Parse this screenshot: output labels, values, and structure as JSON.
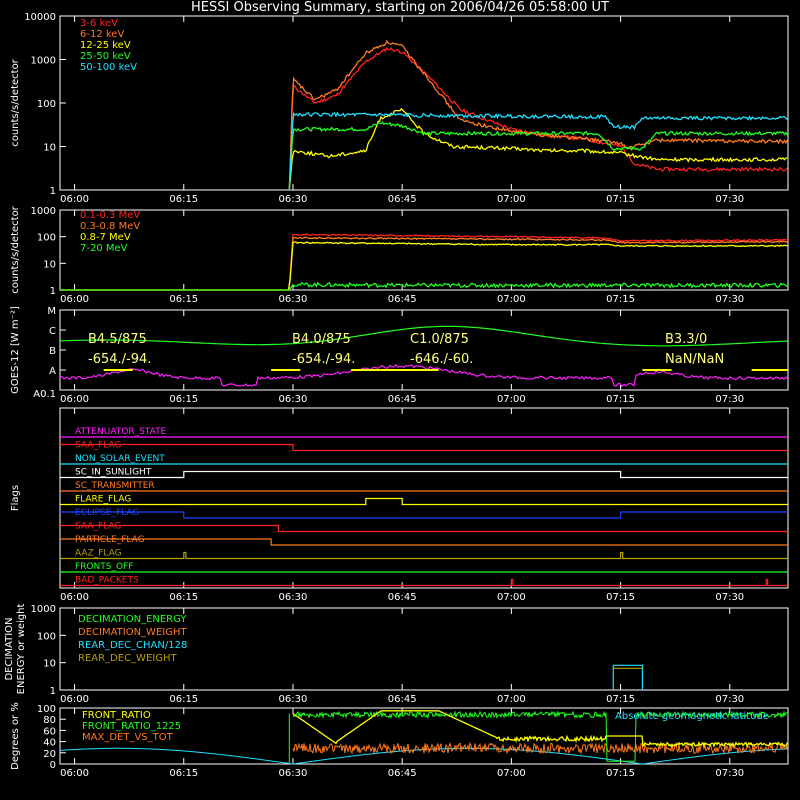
{
  "title": "HESSI Observing Summary, starting on 2006/04/26 05:58:00 UT",
  "time_ticks": [
    "06:00",
    "06:15",
    "06:30",
    "06:45",
    "07:00",
    "07:15",
    "07:30"
  ],
  "colors": {
    "background": "#000000",
    "axes": "#ffffff",
    "red": "#ff2020",
    "orange": "#ff7a20",
    "yellow": "#ffff00",
    "green": "#20ff20",
    "cyan": "#20e0ff",
    "magenta": "#ff20ff",
    "blue": "#2040ff",
    "olive": "#b8a000"
  },
  "chart_data": [
    {
      "type": "line",
      "ylabel": "counts/s/detector",
      "yscale": "log",
      "ylim": [
        1,
        10000
      ],
      "yticks": [
        "1",
        "10",
        "100",
        "1000",
        "10000"
      ],
      "xlim": [
        "05:58",
        "07:38"
      ],
      "series": [
        {
          "name": "3-6 keV",
          "color": "#ff2020",
          "points": [
            [
              "06:29.5",
              1
            ],
            [
              "06:30",
              250
            ],
            [
              "06:33",
              100
            ],
            [
              "06:36",
              150
            ],
            [
              "06:40",
              900
            ],
            [
              "06:43",
              1800
            ],
            [
              "06:45",
              1500
            ],
            [
              "06:49",
              350
            ],
            [
              "06:53",
              70
            ],
            [
              "07:00",
              25
            ],
            [
              "07:05",
              18
            ],
            [
              "07:10",
              15
            ],
            [
              "07:15",
              10
            ],
            [
              "07:17",
              4
            ],
            [
              "07:20",
              3
            ],
            [
              "07:38",
              3
            ]
          ]
        },
        {
          "name": "6-12 keV",
          "color": "#ff7a20",
          "points": [
            [
              "06:29.5",
              1
            ],
            [
              "06:30",
              350
            ],
            [
              "06:33",
              120
            ],
            [
              "06:36",
              200
            ],
            [
              "06:40",
              1400
            ],
            [
              "06:43",
              2500
            ],
            [
              "06:45",
              2000
            ],
            [
              "06:49",
              300
            ],
            [
              "06:53",
              40
            ],
            [
              "07:00",
              22
            ],
            [
              "07:05",
              18
            ],
            [
              "07:10",
              15
            ],
            [
              "07:15",
              12
            ],
            [
              "07:16",
              9
            ],
            [
              "07:20",
              14
            ],
            [
              "07:38",
              13
            ]
          ]
        },
        {
          "name": "12-25 keV",
          "color": "#ffff00",
          "points": [
            [
              "06:29.5",
              1
            ],
            [
              "06:30",
              8
            ],
            [
              "06:35",
              6
            ],
            [
              "06:40",
              8
            ],
            [
              "06:42",
              45
            ],
            [
              "06:45",
              70
            ],
            [
              "06:48",
              20
            ],
            [
              "06:52",
              10
            ],
            [
              "07:00",
              9
            ],
            [
              "07:05",
              8
            ],
            [
              "07:10",
              8
            ],
            [
              "07:15",
              7
            ],
            [
              "07:20",
              5
            ],
            [
              "07:38",
              5
            ]
          ]
        },
        {
          "name": "25-50 keV",
          "color": "#20ff20",
          "points": [
            [
              "06:29.5",
              1
            ],
            [
              "06:30",
              25
            ],
            [
              "06:40",
              25
            ],
            [
              "06:42",
              35
            ],
            [
              "06:45",
              30
            ],
            [
              "06:48",
              20
            ],
            [
              "07:00",
              20
            ],
            [
              "07:12",
              20
            ],
            [
              "07:14",
              9
            ],
            [
              "07:18",
              9
            ],
            [
              "07:20",
              20
            ],
            [
              "07:38",
              20
            ]
          ]
        },
        {
          "name": "50-100 keV",
          "color": "#20e0ff",
          "points": [
            [
              "06:29.5",
              1
            ],
            [
              "06:30",
              55
            ],
            [
              "07:13",
              48
            ],
            [
              "07:14",
              28
            ],
            [
              "07:17",
              28
            ],
            [
              "07:18",
              45
            ],
            [
              "07:38",
              45
            ]
          ]
        }
      ]
    },
    {
      "type": "line",
      "ylabel": "counts/s/detector",
      "yscale": "log",
      "ylim": [
        1,
        1000
      ],
      "yticks": [
        "1",
        "10",
        "100",
        "1000"
      ],
      "xlim": [
        "05:58",
        "07:38"
      ],
      "series": [
        {
          "name": "0.1-0.3 MeV",
          "color": "#ff2020",
          "points": [
            [
              "05:58",
              1
            ],
            [
              "06:29.5",
              1
            ],
            [
              "06:30",
              120
            ],
            [
              "06:45",
              110
            ],
            [
              "07:00",
              100
            ],
            [
              "07:13",
              90
            ],
            [
              "07:15",
              70
            ],
            [
              "07:38",
              75
            ]
          ]
        },
        {
          "name": "0.3-0.8 MeV",
          "color": "#ff7a20",
          "points": [
            [
              "05:58",
              1
            ],
            [
              "06:29.5",
              1
            ],
            [
              "06:30",
              90
            ],
            [
              "06:45",
              85
            ],
            [
              "07:00",
              80
            ],
            [
              "07:13",
              75
            ],
            [
              "07:15",
              60
            ],
            [
              "07:38",
              65
            ]
          ]
        },
        {
          "name": "0.8-7 MeV",
          "color": "#ffff00",
          "points": [
            [
              "05:58",
              1
            ],
            [
              "06:29.5",
              1
            ],
            [
              "06:30",
              60
            ],
            [
              "06:45",
              55
            ],
            [
              "07:00",
              50
            ],
            [
              "07:13",
              50
            ],
            [
              "07:15",
              45
            ],
            [
              "07:38",
              45
            ]
          ]
        },
        {
          "name": "7-20 MeV",
          "color": "#20ff20",
          "points": [
            [
              "05:58",
              1
            ],
            [
              "06:29.5",
              1
            ],
            [
              "06:30",
              1.6
            ],
            [
              "06:45",
              1.5
            ],
            [
              "07:00",
              1.5
            ],
            [
              "07:38",
              1.5
            ]
          ]
        }
      ]
    },
    {
      "type": "line",
      "ylabel": "GOES-12 [W m⁻²]",
      "ylim_labels": [
        "A0.1",
        "A",
        "B",
        "C",
        "M"
      ],
      "annotations": [
        "B4.5/875",
        "-654./-94.",
        "B4.0/875",
        "-654./-94.",
        "C1.0/875",
        "-646./-60.",
        "B3.3/0",
        "NaN/NaN"
      ],
      "series": [
        {
          "name": "GOES long",
          "color": "#20ff20"
        },
        {
          "name": "GOES short",
          "color": "#ff20ff"
        },
        {
          "name": "flare intervals",
          "color": "#ffff00"
        }
      ]
    },
    {
      "type": "flags",
      "ylabel": "Flags",
      "flags": [
        {
          "name": "ATTENUATOR_STATE",
          "color": "#ff20ff",
          "transitions": []
        },
        {
          "name": "SAA_FLAG",
          "color": "#ff2020",
          "transitions": [
            [
              "05:58",
              1
            ],
            [
              "06:30",
              0
            ]
          ]
        },
        {
          "name": "NON_SOLAR_EVENT",
          "color": "#20e0ff",
          "transitions": []
        },
        {
          "name": "SC_IN_SUNLIGHT",
          "color": "#ffffff",
          "transitions": [
            [
              "05:58",
              0
            ],
            [
              "06:15",
              1
            ],
            [
              "07:15",
              0
            ]
          ]
        },
        {
          "name": "SC_TRANSMITTER",
          "color": "#ff7a20",
          "transitions": []
        },
        {
          "name": "FLARE_FLAG",
          "color": "#ffff00",
          "transitions": [
            [
              "05:58",
              0
            ],
            [
              "06:40",
              1
            ],
            [
              "06:45",
              0
            ]
          ]
        },
        {
          "name": "ECLIPSE_FLAG",
          "color": "#2040ff",
          "transitions": [
            [
              "05:58",
              1
            ],
            [
              "06:15",
              0
            ],
            [
              "07:15",
              1
            ]
          ]
        },
        {
          "name": "SAA_FLAG",
          "color": "#ff2020",
          "transitions": [
            [
              "05:58",
              1
            ],
            [
              "06:28",
              0
            ]
          ]
        },
        {
          "name": "PARTICLE_FLAG",
          "color": "#ff7a20",
          "transitions": [
            [
              "05:58",
              1
            ],
            [
              "06:27",
              0
            ]
          ]
        },
        {
          "name": "AAZ_FLAG",
          "color": "#b8a000",
          "transitions": [
            [
              "05:58",
              0
            ],
            [
              "06:15",
              1
            ],
            [
              "06:15.3",
              0
            ],
            [
              "07:15",
              1
            ],
            [
              "07:15.3",
              0
            ]
          ]
        },
        {
          "name": "FRONTS_OFF",
          "color": "#20ff20",
          "transitions": []
        },
        {
          "name": "BAD_PACKETS",
          "color": "#ff2020",
          "transitions": [
            [
              "05:58",
              0
            ],
            [
              "07:00",
              1
            ],
            [
              "07:00.2",
              0
            ],
            [
              "07:35",
              1
            ],
            [
              "07:35.2",
              0
            ]
          ]
        }
      ]
    },
    {
      "type": "line",
      "ylabel": "DECIMATION ENERGY or weight",
      "yscale": "log",
      "ylim": [
        1,
        1000
      ],
      "yticks": [
        "1",
        "10",
        "100",
        "1000"
      ],
      "series": [
        {
          "name": "DECIMATION_ENERGY",
          "color": "#20ff20"
        },
        {
          "name": "DECIMATION_WEIGHT",
          "color": "#ff7a20"
        },
        {
          "name": "REAR_DEC_CHAN/128",
          "color": "#20e0ff"
        },
        {
          "name": "REAR_DEC_WEIGHT",
          "color": "#b8a000"
        }
      ]
    },
    {
      "type": "line",
      "ylabel": "Degrees or %",
      "ylim": [
        0,
        100
      ],
      "yticks": [
        "0",
        "20",
        "40",
        "60",
        "80",
        "100"
      ],
      "annotation": "Absolute geomagnetic latitude",
      "series": [
        {
          "name": "FRONT_RATIO",
          "color": "#ffff00"
        },
        {
          "name": "FRONT_RATIO_1225",
          "color": "#20ff20"
        },
        {
          "name": "MAX_DET_VS_TOT",
          "color": "#ff7a20"
        },
        {
          "name": "",
          "color": "#20e0ff"
        }
      ]
    }
  ]
}
